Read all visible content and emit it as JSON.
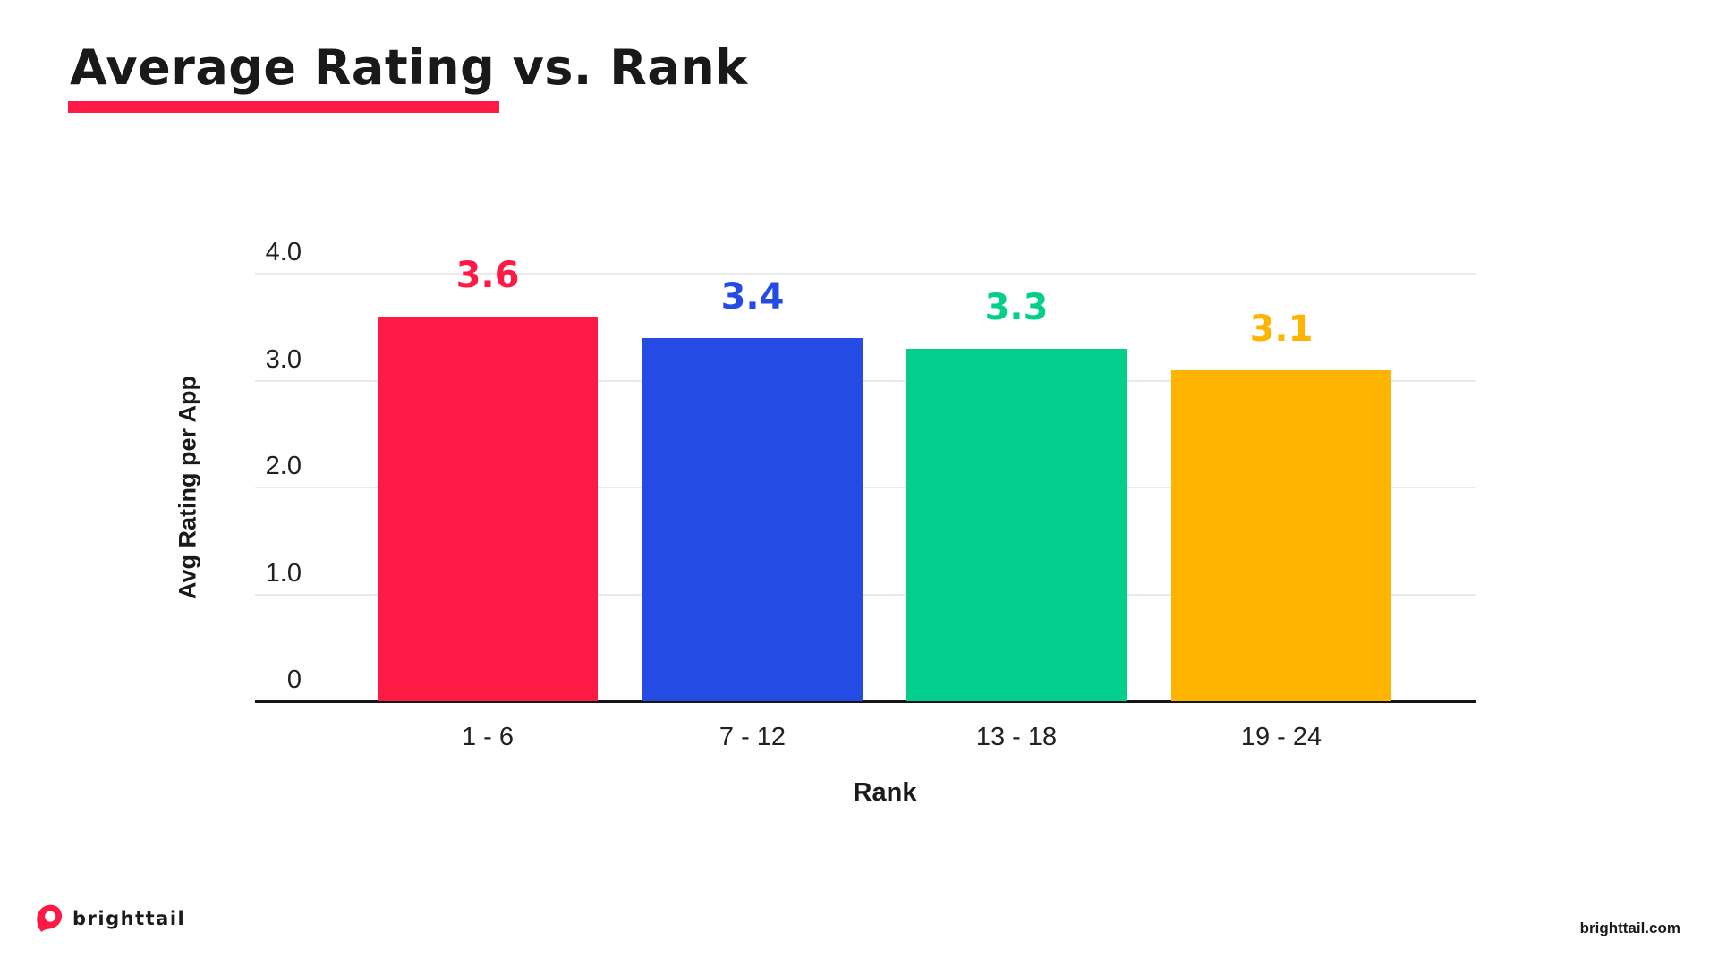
{
  "page": {
    "title": "Average Rating vs. Rank"
  },
  "chart_data": {
    "type": "bar",
    "title": "Average Rating vs. Rank",
    "xlabel": "Rank",
    "ylabel": "Avg Rating per App",
    "categories": [
      "1 - 6",
      "7 - 12",
      "13 - 18",
      "19 - 24"
    ],
    "values": [
      3.6,
      3.4,
      3.3,
      3.1
    ],
    "value_labels": [
      "3.6",
      "3.4",
      "3.3",
      "3.1"
    ],
    "bar_colors": [
      "#FD1A45",
      "#254BE5",
      "#04CE8C",
      "#FFB401"
    ],
    "ylim": [
      0,
      4
    ],
    "yticks": [
      {
        "label": "4.0",
        "value": 4
      },
      {
        "label": "3.0",
        "value": 3
      },
      {
        "label": "2.0",
        "value": 2
      },
      {
        "label": "1.0",
        "value": 1
      },
      {
        "label": "0",
        "value": 0
      }
    ],
    "grid": "horizontal",
    "legend": "none"
  },
  "colors": {
    "accent_red": "#FD1A45",
    "text": "#1A1A1A",
    "gridline": "#EAEAEA"
  },
  "footer": {
    "brand": "brighttail",
    "website": "brighttail.com"
  }
}
